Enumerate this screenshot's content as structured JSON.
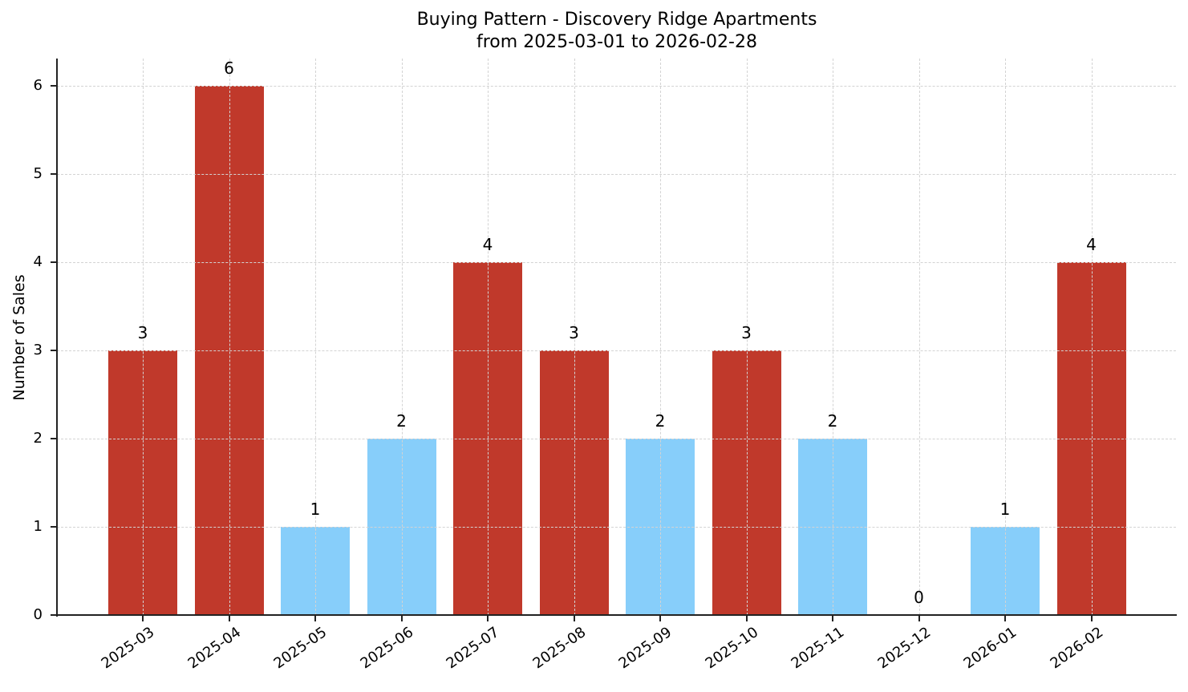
{
  "chart_data": {
    "type": "bar",
    "title": "Buying Pattern - Discovery Ridge Apartments",
    "subtitle": "from 2025-03-01 to 2026-02-28",
    "xlabel": "",
    "ylabel": "Number of Sales",
    "categories": [
      "2025-03",
      "2025-04",
      "2025-05",
      "2025-06",
      "2025-07",
      "2025-08",
      "2025-09",
      "2025-10",
      "2025-11",
      "2025-12",
      "2026-01",
      "2026-02"
    ],
    "values": [
      3,
      6,
      1,
      2,
      4,
      3,
      2,
      3,
      2,
      0,
      1,
      4
    ],
    "bar_colors": [
      "#c0392b",
      "#c0392b",
      "#87cefa",
      "#87cefa",
      "#c0392b",
      "#c0392b",
      "#87cefa",
      "#c0392b",
      "#87cefa",
      "#87cefa",
      "#87cefa",
      "#c0392b"
    ],
    "color_legend_implied": {
      "high": "#c0392b",
      "low": "#87cefa",
      "threshold_note": "values >= 3 shown red, < 3 shown light blue"
    },
    "yticks": [
      "0",
      "1",
      "2",
      "3",
      "4",
      "5",
      "6"
    ],
    "ylim": [
      0,
      6.31
    ],
    "grid": true,
    "data_labels": true,
    "legend": "none"
  }
}
